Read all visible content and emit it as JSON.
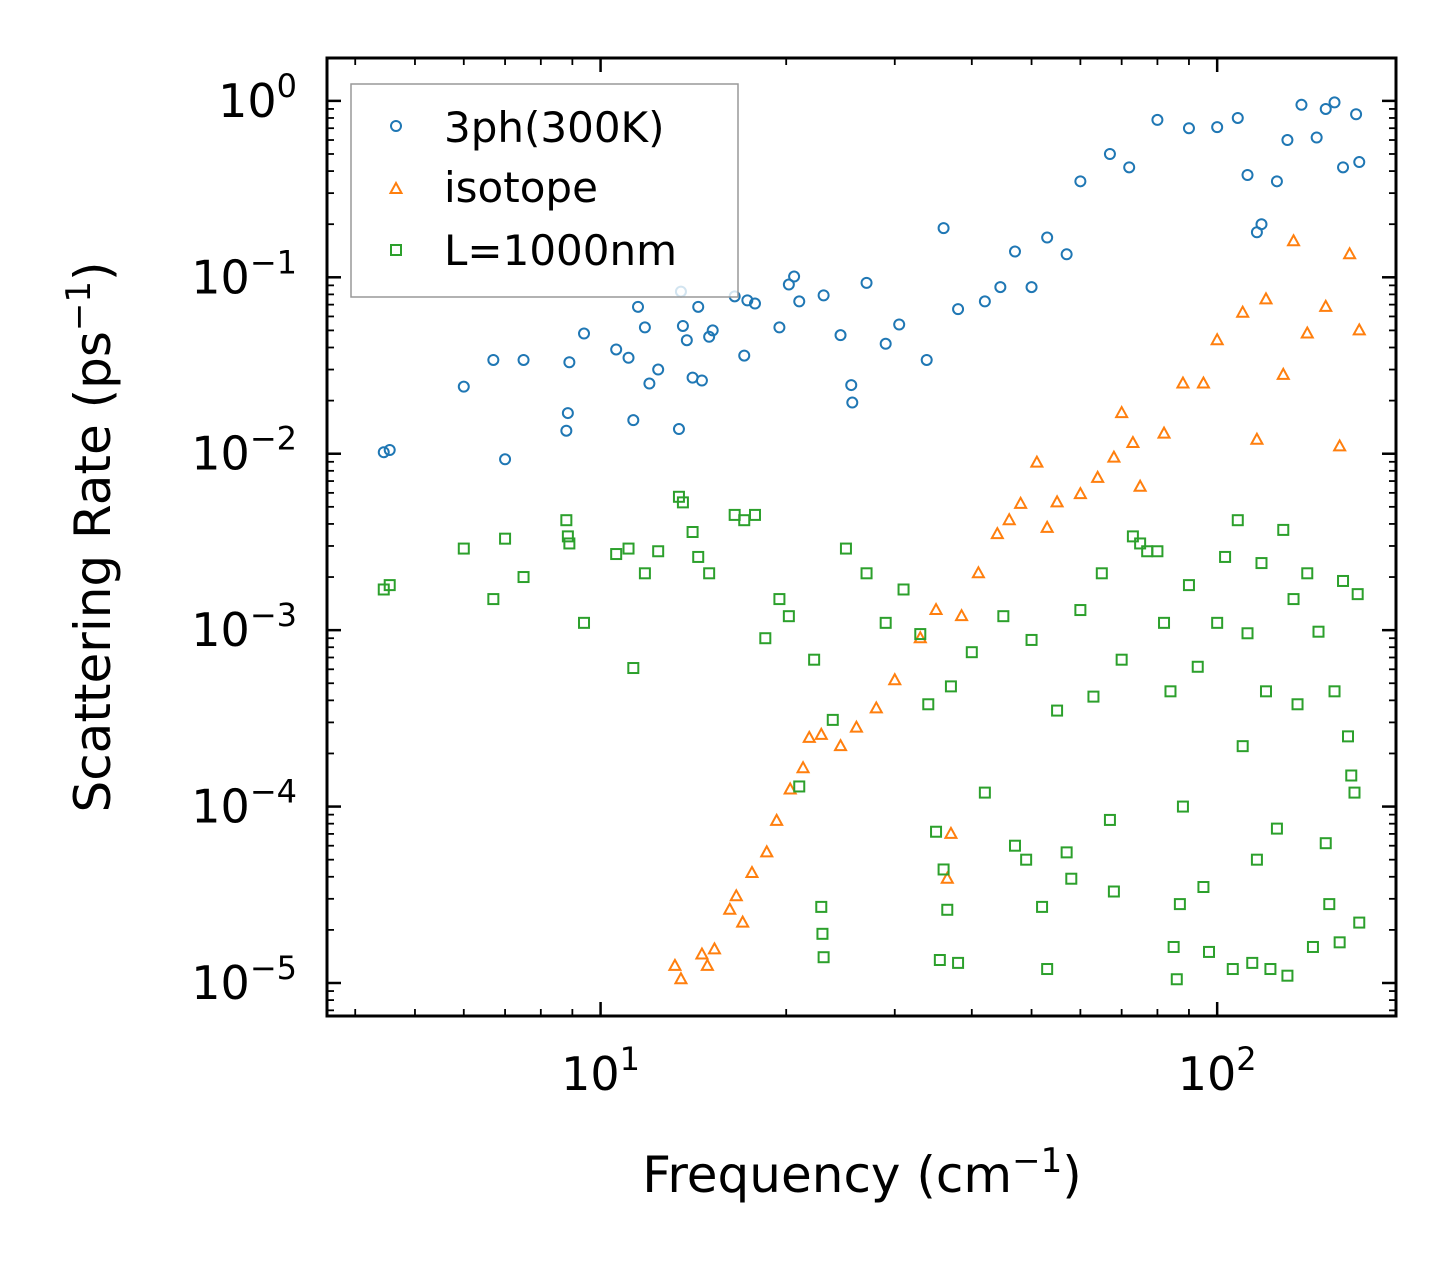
{
  "chart_data": {
    "type": "scatter",
    "title": "",
    "xlabel": "Frequency (cm",
    "xlabel_sup": "−1",
    "xlabel_end": ")",
    "ylabel": "Scattering Rate (ps",
    "ylabel_sup": "−1",
    "ylabel_end": ")",
    "xscale": "log",
    "yscale": "log",
    "xlim": [
      3.6,
      195
    ],
    "ylim": [
      6.5e-06,
      1.75
    ],
    "xticks": [
      {
        "value": 10,
        "base": "10",
        "exp": "1"
      },
      {
        "value": 100,
        "base": "10",
        "exp": "2"
      }
    ],
    "yticks": [
      {
        "value": 1,
        "base": "10",
        "exp": "0"
      },
      {
        "value": 0.1,
        "base": "10",
        "exp": "−1"
      },
      {
        "value": 0.01,
        "base": "10",
        "exp": "−2"
      },
      {
        "value": 0.001,
        "base": "10",
        "exp": "−3"
      },
      {
        "value": 0.0001,
        "base": "10",
        "exp": "−4"
      },
      {
        "value": 1e-05,
        "base": "10",
        "exp": "−5"
      }
    ],
    "legend_position": "top-left",
    "series": [
      {
        "name": "3ph(300K)",
        "marker": "circle",
        "color": "#1f77b4",
        "points": [
          [
            4.45,
            0.0102
          ],
          [
            4.55,
            0.0105
          ],
          [
            6.0,
            0.024
          ],
          [
            6.7,
            0.034
          ],
          [
            7.0,
            0.0093
          ],
          [
            7.5,
            0.034
          ],
          [
            8.8,
            0.0135
          ],
          [
            8.85,
            0.017
          ],
          [
            8.9,
            0.033
          ],
          [
            9.4,
            0.048
          ],
          [
            10.6,
            0.039
          ],
          [
            11.1,
            0.035
          ],
          [
            11.3,
            0.0155
          ],
          [
            11.5,
            0.068
          ],
          [
            11.8,
            0.052
          ],
          [
            12.0,
            0.025
          ],
          [
            12.4,
            0.03
          ],
          [
            13.4,
            0.0138
          ],
          [
            13.5,
            0.083
          ],
          [
            13.6,
            0.053
          ],
          [
            13.8,
            0.044
          ],
          [
            14.1,
            0.027
          ],
          [
            14.4,
            0.068
          ],
          [
            14.6,
            0.026
          ],
          [
            15.0,
            0.046
          ],
          [
            15.2,
            0.05
          ],
          [
            16.5,
            0.078
          ],
          [
            17.1,
            0.036
          ],
          [
            17.3,
            0.074
          ],
          [
            17.8,
            0.071
          ],
          [
            19.5,
            0.052
          ],
          [
            20.2,
            0.091
          ],
          [
            20.6,
            0.101
          ],
          [
            21.0,
            0.073
          ],
          [
            23.0,
            0.079
          ],
          [
            24.5,
            0.047
          ],
          [
            25.5,
            0.0245
          ],
          [
            25.6,
            0.0195
          ],
          [
            27.0,
            0.093
          ],
          [
            29.0,
            0.042
          ],
          [
            30.5,
            0.054
          ],
          [
            33.8,
            0.034
          ],
          [
            36.0,
            0.19
          ],
          [
            38.0,
            0.066
          ],
          [
            42.0,
            0.073
          ],
          [
            44.5,
            0.088
          ],
          [
            47.0,
            0.14
          ],
          [
            50.0,
            0.088
          ],
          [
            53.0,
            0.168
          ],
          [
            57.0,
            0.135
          ],
          [
            60.0,
            0.35
          ],
          [
            67.0,
            0.5
          ],
          [
            72.0,
            0.42
          ],
          [
            80.0,
            0.78
          ],
          [
            90.0,
            0.7
          ],
          [
            100.0,
            0.71
          ],
          [
            108.0,
            0.8
          ],
          [
            112.0,
            0.38
          ],
          [
            116.0,
            0.18
          ],
          [
            118.0,
            0.2
          ],
          [
            125.0,
            0.35
          ],
          [
            130.0,
            0.6
          ],
          [
            137.0,
            0.95
          ],
          [
            145.0,
            0.62
          ],
          [
            150.0,
            0.9
          ],
          [
            155.0,
            0.98
          ],
          [
            160.0,
            0.42
          ],
          [
            168.0,
            0.84
          ],
          [
            170.0,
            0.45
          ]
        ]
      },
      {
        "name": "isotope",
        "marker": "triangle",
        "color": "#ff7f0e",
        "points": [
          [
            13.2,
            1.25e-05
          ],
          [
            13.5,
            1.05e-05
          ],
          [
            14.6,
            1.45e-05
          ],
          [
            14.9,
            1.25e-05
          ],
          [
            15.3,
            1.55e-05
          ],
          [
            16.2,
            2.6e-05
          ],
          [
            16.6,
            3.1e-05
          ],
          [
            17.0,
            2.2e-05
          ],
          [
            17.6,
            4.2e-05
          ],
          [
            18.6,
            5.5e-05
          ],
          [
            19.3,
            8.3e-05
          ],
          [
            20.3,
            0.000125
          ],
          [
            21.3,
            0.000165
          ],
          [
            21.8,
            0.000245
          ],
          [
            22.8,
            0.000255
          ],
          [
            24.5,
            0.00022
          ],
          [
            26.0,
            0.00028
          ],
          [
            28.0,
            0.00036
          ],
          [
            30.0,
            0.00052
          ],
          [
            33.0,
            0.0009
          ],
          [
            35.0,
            0.0013
          ],
          [
            36.5,
            3.9e-05
          ],
          [
            37.0,
            7e-05
          ],
          [
            38.5,
            0.0012
          ],
          [
            41.0,
            0.0021
          ],
          [
            44.0,
            0.0035
          ],
          [
            46.0,
            0.0042
          ],
          [
            48.0,
            0.0052
          ],
          [
            51.0,
            0.0089
          ],
          [
            53.0,
            0.0038
          ],
          [
            55.0,
            0.0053
          ],
          [
            60.0,
            0.0059
          ],
          [
            64.0,
            0.0073
          ],
          [
            68.0,
            0.0095
          ],
          [
            70.0,
            0.017
          ],
          [
            73.0,
            0.0115
          ],
          [
            75.0,
            0.0065
          ],
          [
            82.0,
            0.013
          ],
          [
            88.0,
            0.025
          ],
          [
            95.0,
            0.025
          ],
          [
            100.0,
            0.044
          ],
          [
            110.0,
            0.063
          ],
          [
            116.0,
            0.012
          ],
          [
            120.0,
            0.075
          ],
          [
            128.0,
            0.028
          ],
          [
            133.0,
            0.16
          ],
          [
            140.0,
            0.048
          ],
          [
            150.0,
            0.068
          ],
          [
            158.0,
            0.011
          ],
          [
            164.0,
            0.135
          ],
          [
            170.0,
            0.05
          ]
        ]
      },
      {
        "name": "L=1000nm",
        "marker": "square",
        "color": "#2ca02c",
        "points": [
          [
            4.45,
            0.0017
          ],
          [
            4.55,
            0.0018
          ],
          [
            6.0,
            0.0029
          ],
          [
            6.7,
            0.0015
          ],
          [
            7.0,
            0.0033
          ],
          [
            7.5,
            0.002
          ],
          [
            8.8,
            0.0042
          ],
          [
            8.85,
            0.0034
          ],
          [
            8.9,
            0.0031
          ],
          [
            9.4,
            0.0011
          ],
          [
            10.6,
            0.0027
          ],
          [
            11.1,
            0.0029
          ],
          [
            11.3,
            0.00061
          ],
          [
            11.8,
            0.0021
          ],
          [
            12.4,
            0.0028
          ],
          [
            13.4,
            0.0057
          ],
          [
            13.6,
            0.0053
          ],
          [
            14.1,
            0.0036
          ],
          [
            14.4,
            0.0026
          ],
          [
            15.0,
            0.0021
          ],
          [
            16.5,
            0.0045
          ],
          [
            17.1,
            0.0042
          ],
          [
            17.8,
            0.0045
          ],
          [
            18.5,
            0.0009
          ],
          [
            19.5,
            0.0015
          ],
          [
            20.2,
            0.0012
          ],
          [
            21.0,
            0.00013
          ],
          [
            22.2,
            0.00068
          ],
          [
            22.8,
            2.7e-05
          ],
          [
            22.9,
            1.9e-05
          ],
          [
            23.0,
            1.4e-05
          ],
          [
            23.8,
            0.00031
          ],
          [
            25.0,
            0.0029
          ],
          [
            27.0,
            0.0021
          ],
          [
            29.0,
            0.0011
          ],
          [
            31.0,
            0.0017
          ],
          [
            33.0,
            0.00095
          ],
          [
            34.0,
            0.00038
          ],
          [
            35.0,
            7.2e-05
          ],
          [
            35.5,
            1.35e-05
          ],
          [
            36.0,
            4.4e-05
          ],
          [
            36.5,
            2.6e-05
          ],
          [
            37.0,
            0.00048
          ],
          [
            38.0,
            1.3e-05
          ],
          [
            40.0,
            0.00075
          ],
          [
            42.0,
            0.00012
          ],
          [
            45.0,
            0.0012
          ],
          [
            47.0,
            6e-05
          ],
          [
            49.0,
            5e-05
          ],
          [
            50.0,
            0.00088
          ],
          [
            52.0,
            2.7e-05
          ],
          [
            53.0,
            1.2e-05
          ],
          [
            55.0,
            0.00035
          ],
          [
            57.0,
            5.5e-05
          ],
          [
            58.0,
            3.9e-05
          ],
          [
            60.0,
            0.0013
          ],
          [
            63.0,
            0.00042
          ],
          [
            65.0,
            0.0021
          ],
          [
            67.0,
            8.4e-05
          ],
          [
            68.0,
            3.3e-05
          ],
          [
            70.0,
            0.00068
          ],
          [
            73.0,
            0.0034
          ],
          [
            75.0,
            0.0031
          ],
          [
            77.0,
            0.0028
          ],
          [
            80.0,
            0.0028
          ],
          [
            82.0,
            0.0011
          ],
          [
            84.0,
            0.00045
          ],
          [
            85.0,
            1.6e-05
          ],
          [
            86.0,
            1.05e-05
          ],
          [
            87.0,
            2.8e-05
          ],
          [
            88.0,
            0.0001
          ],
          [
            90.0,
            0.0018
          ],
          [
            93.0,
            0.00062
          ],
          [
            95.0,
            3.5e-05
          ],
          [
            97.0,
            1.5e-05
          ],
          [
            100.0,
            0.0011
          ],
          [
            103.0,
            0.0026
          ],
          [
            106.0,
            1.2e-05
          ],
          [
            108.0,
            0.0042
          ],
          [
            110.0,
            0.00022
          ],
          [
            112.0,
            0.00096
          ],
          [
            114.0,
            1.3e-05
          ],
          [
            116.0,
            5e-05
          ],
          [
            118.0,
            0.0024
          ],
          [
            120.0,
            0.00045
          ],
          [
            122.0,
            1.2e-05
          ],
          [
            125.0,
            7.5e-05
          ],
          [
            128.0,
            0.0037
          ],
          [
            130.0,
            1.1e-05
          ],
          [
            133.0,
            0.0015
          ],
          [
            135.0,
            0.00038
          ],
          [
            140.0,
            0.0021
          ],
          [
            143.0,
            1.6e-05
          ],
          [
            146.0,
            0.00098
          ],
          [
            150.0,
            6.2e-05
          ],
          [
            152.0,
            2.8e-05
          ],
          [
            155.0,
            0.00045
          ],
          [
            158.0,
            1.7e-05
          ],
          [
            160.0,
            0.0019
          ],
          [
            163.0,
            0.00025
          ],
          [
            165.0,
            0.00015
          ],
          [
            167.0,
            0.00012
          ],
          [
            169.0,
            0.0016
          ],
          [
            170.0,
            2.2e-05
          ]
        ]
      }
    ]
  }
}
